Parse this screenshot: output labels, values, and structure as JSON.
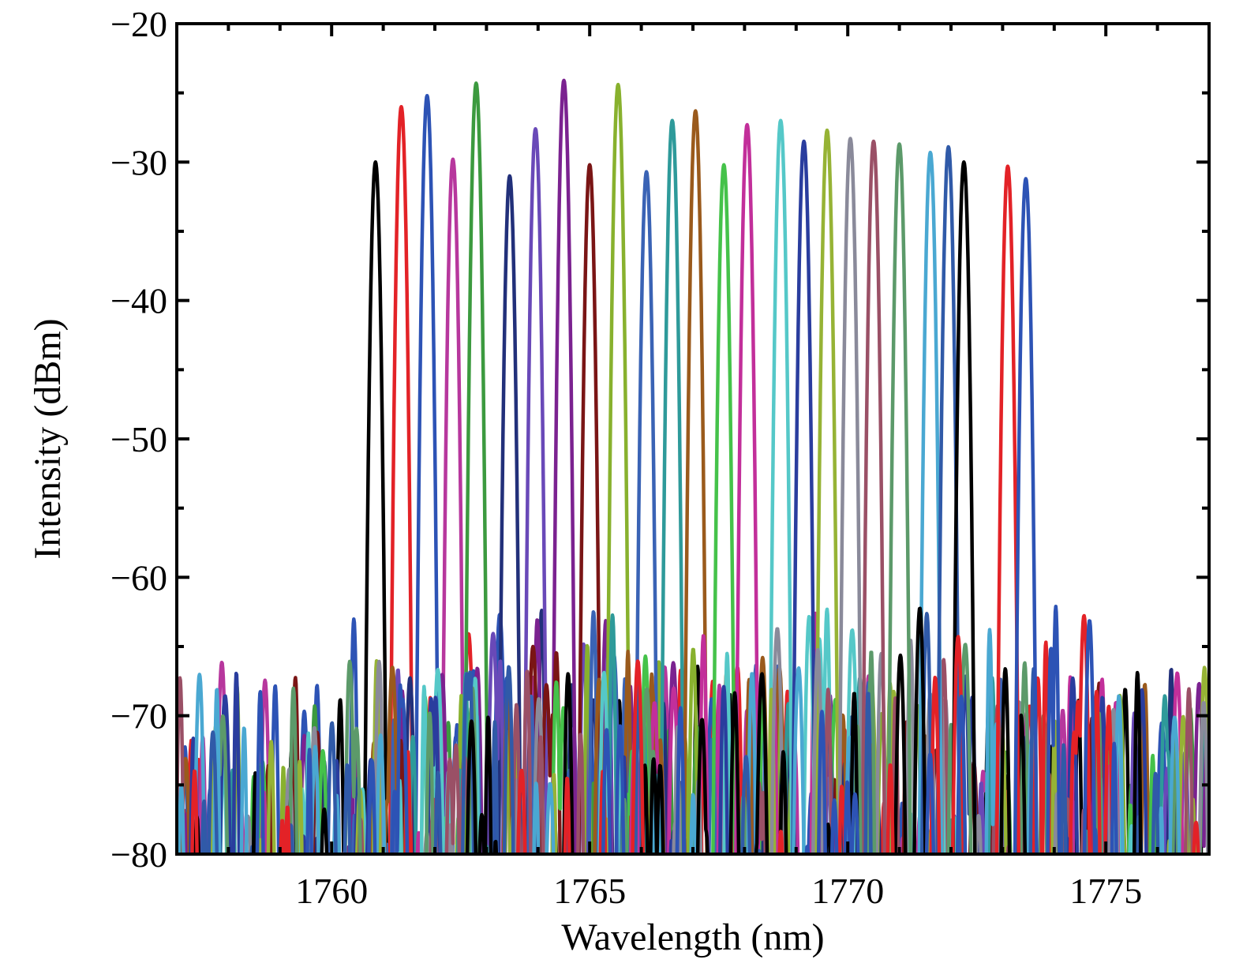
{
  "chart_data": {
    "type": "line",
    "xlabel": "Wavelength (nm)",
    "ylabel": "Intensity (dBm)",
    "xlim": [
      1757,
      1777
    ],
    "ylim": [
      -80,
      -20
    ],
    "xticks": [
      1760,
      1765,
      1770,
      1775
    ],
    "yticks": [
      -20,
      -30,
      -40,
      -50,
      -60,
      -70,
      -80
    ],
    "grid": false,
    "legend": "none",
    "noise_floor_dBm": [
      -80,
      -70
    ],
    "series": [
      {
        "color": "#000000",
        "peak_wavelength": 1760.85,
        "peak_dBm": -30.0
      },
      {
        "color": "#e32227",
        "peak_wavelength": 1761.35,
        "peak_dBm": -26.0
      },
      {
        "color": "#2d53b5",
        "peak_wavelength": 1761.85,
        "peak_dBm": -25.2
      },
      {
        "color": "#b7379d",
        "peak_wavelength": 1762.35,
        "peak_dBm": -29.8
      },
      {
        "color": "#3c9a3f",
        "peak_wavelength": 1762.8,
        "peak_dBm": -24.3
      },
      {
        "color": "#22307a",
        "peak_wavelength": 1763.45,
        "peak_dBm": -31.0
      },
      {
        "color": "#6949b8",
        "peak_wavelength": 1763.95,
        "peak_dBm": -27.6
      },
      {
        "color": "#7b2290",
        "peak_wavelength": 1764.5,
        "peak_dBm": -24.1
      },
      {
        "color": "#7a1515",
        "peak_wavelength": 1765.0,
        "peak_dBm": -30.2
      },
      {
        "color": "#88b12e",
        "peak_wavelength": 1765.55,
        "peak_dBm": -24.4
      },
      {
        "color": "#3a63b5",
        "peak_wavelength": 1766.1,
        "peak_dBm": -30.7
      },
      {
        "color": "#2e9a9a",
        "peak_wavelength": 1766.6,
        "peak_dBm": -27.0
      },
      {
        "color": "#9a5a1c",
        "peak_wavelength": 1767.05,
        "peak_dBm": -26.3
      },
      {
        "color": "#45c24a",
        "peak_wavelength": 1767.6,
        "peak_dBm": -30.2
      },
      {
        "color": "#c22f9a",
        "peak_wavelength": 1768.05,
        "peak_dBm": -27.3
      },
      {
        "color": "#55c8c8",
        "peak_wavelength": 1768.7,
        "peak_dBm": -27.0
      },
      {
        "color": "#2a3d9e",
        "peak_wavelength": 1769.15,
        "peak_dBm": -28.5
      },
      {
        "color": "#96b335",
        "peak_wavelength": 1769.6,
        "peak_dBm": -27.7
      },
      {
        "color": "#8a8a9a",
        "peak_wavelength": 1770.05,
        "peak_dBm": -28.3
      },
      {
        "color": "#9a5066",
        "peak_wavelength": 1770.5,
        "peak_dBm": -28.5
      },
      {
        "color": "#5c9a6a",
        "peak_wavelength": 1771.0,
        "peak_dBm": -28.7
      },
      {
        "color": "#4aa8d2",
        "peak_wavelength": 1771.6,
        "peak_dBm": -29.3
      },
      {
        "color": "#305aa8",
        "peak_wavelength": 1771.95,
        "peak_dBm": -28.9
      },
      {
        "color": "#000000",
        "peak_wavelength": 1772.25,
        "peak_dBm": -30.0
      },
      {
        "color": "#e32227",
        "peak_wavelength": 1773.1,
        "peak_dBm": -30.3
      },
      {
        "color": "#2d53b5",
        "peak_wavelength": 1773.45,
        "peak_dBm": -31.2
      }
    ]
  }
}
